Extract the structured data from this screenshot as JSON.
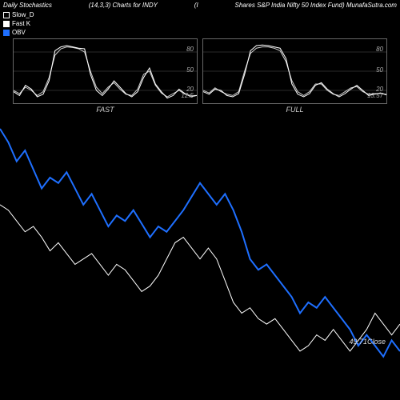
{
  "header": {
    "left": "Daily Stochastics",
    "mid1": "(14,3,3) Charts for INDY",
    "mid2": "(I",
    "right": "Shares S&P India Nifty 50 Index Fund) MunafaSutra.com"
  },
  "legend": {
    "slow_d": {
      "label": "Slow_D",
      "color": "#ffffff"
    },
    "fast_k": {
      "label": "Fast K",
      "color": "#ffffff"
    },
    "obv": {
      "label": "OBV",
      "color": "#1e6fff"
    }
  },
  "sub_charts": {
    "fast": {
      "label": "FAST",
      "grid_color": "#555555",
      "y_ticks": [
        20,
        50,
        80
      ],
      "end_value": "12.5",
      "line1_color": "#ffffff",
      "line2_color": "#cccccc",
      "line1": [
        18,
        12,
        28,
        22,
        10,
        14,
        35,
        82,
        88,
        90,
        88,
        86,
        85,
        45,
        20,
        12,
        22,
        35,
        25,
        15,
        10,
        18,
        40,
        55,
        30,
        18,
        8,
        12,
        22,
        15,
        10,
        12
      ],
      "line2": [
        20,
        15,
        25,
        20,
        12,
        18,
        40,
        75,
        85,
        88,
        87,
        85,
        80,
        50,
        25,
        15,
        25,
        32,
        22,
        14,
        12,
        22,
        45,
        50,
        28,
        16,
        10,
        15,
        20,
        14,
        12,
        12
      ]
    },
    "full": {
      "label": "FULL",
      "grid_color": "#555555",
      "y_ticks": [
        20,
        50,
        80
      ],
      "end_value": "13.57",
      "line1_color": "#ffffff",
      "line2_color": "#cccccc",
      "line1": [
        18,
        14,
        22,
        20,
        12,
        10,
        15,
        45,
        82,
        90,
        91,
        90,
        88,
        86,
        70,
        30,
        14,
        10,
        15,
        28,
        32,
        22,
        15,
        10,
        15,
        22,
        28,
        20,
        12,
        14,
        16,
        13
      ],
      "line2": [
        20,
        16,
        24,
        18,
        14,
        12,
        18,
        50,
        78,
        86,
        88,
        88,
        86,
        82,
        65,
        35,
        18,
        12,
        18,
        30,
        30,
        20,
        14,
        12,
        18,
        24,
        26,
        18,
        14,
        15,
        15,
        14
      ]
    }
  },
  "main_chart": {
    "close_label": "49.71Close",
    "background": "#000000",
    "obv": {
      "color": "#1e6fff",
      "width": 2,
      "data": [
        100,
        95,
        88,
        92,
        85,
        78,
        82,
        80,
        84,
        78,
        72,
        76,
        70,
        64,
        68,
        66,
        70,
        65,
        60,
        64,
        62,
        66,
        70,
        75,
        80,
        76,
        72,
        76,
        70,
        62,
        52,
        48,
        50,
        46,
        42,
        38,
        32,
        36,
        34,
        38,
        34,
        30,
        26,
        20,
        24,
        20,
        16,
        22,
        18
      ]
    },
    "close": {
      "color": "#ffffff",
      "width": 1,
      "data": [
        72,
        70,
        66,
        62,
        64,
        60,
        55,
        58,
        54,
        50,
        52,
        54,
        50,
        46,
        50,
        48,
        44,
        40,
        42,
        46,
        52,
        58,
        60,
        56,
        52,
        56,
        52,
        44,
        36,
        32,
        34,
        30,
        28,
        30,
        26,
        22,
        18,
        20,
        24,
        22,
        26,
        22,
        18,
        22,
        26,
        32,
        28,
        24,
        28
      ]
    },
    "y_domain": [
      0,
      105
    ]
  },
  "style": {
    "font_size_small": 8,
    "font_size_label": 9,
    "italic": true
  }
}
